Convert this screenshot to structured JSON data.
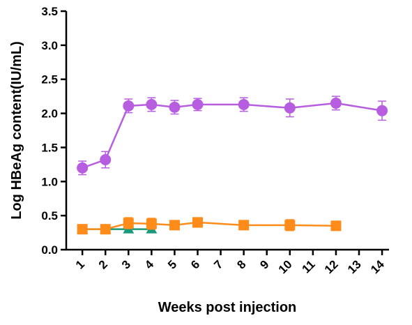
{
  "chart_data": {
    "type": "line",
    "xlabel": "Weeks post injection",
    "ylabel": "Log HBeAg content(IU/mL)",
    "xlim": [
      0.3,
      14.3
    ],
    "xticks": [
      1,
      2,
      3,
      4,
      5,
      6,
      7,
      8,
      9,
      10,
      11,
      12,
      13,
      14
    ],
    "ylim": [
      0,
      3.5
    ],
    "yticks": [
      {
        "value": 0,
        "label": "0.0"
      },
      {
        "value": 0.5,
        "label": "0.5"
      },
      {
        "value": 1,
        "label": "1.0"
      },
      {
        "value": 1.5,
        "label": "1.5"
      },
      {
        "value": 2,
        "label": "2.0"
      },
      {
        "value": 2.5,
        "label": "2.5"
      },
      {
        "value": 3,
        "label": "3.0"
      },
      {
        "value": 3.5,
        "label": "3.5"
      }
    ],
    "series": [
      {
        "color": "#1a9a7a",
        "marker": "triangle",
        "x": [
          1,
          2,
          3,
          4
        ],
        "values": [
          0.3,
          0.3,
          0.3,
          0.3
        ],
        "errors": [
          0,
          0,
          0,
          0
        ]
      },
      {
        "color": "#ff8c1a",
        "marker": "square",
        "x": [
          1,
          2,
          3,
          4,
          5,
          6,
          8,
          10,
          12
        ],
        "values": [
          0.3,
          0.3,
          0.39,
          0.38,
          0.36,
          0.4,
          0.36,
          0.36,
          0.35
        ],
        "errors": [
          0,
          0,
          0.08,
          0.08,
          0.05,
          0.07,
          0.04,
          0.08,
          0.03
        ]
      },
      {
        "color": "#b75ee0",
        "marker": "circle",
        "x": [
          1,
          2,
          3,
          4,
          5,
          6,
          8,
          10,
          12,
          14
        ],
        "values": [
          1.2,
          1.32,
          2.11,
          2.13,
          2.09,
          2.13,
          2.13,
          2.08,
          2.15,
          2.04
        ],
        "errors": [
          0.1,
          0.12,
          0.1,
          0.1,
          0.1,
          0.09,
          0.1,
          0.13,
          0.1,
          0.14
        ]
      }
    ]
  }
}
